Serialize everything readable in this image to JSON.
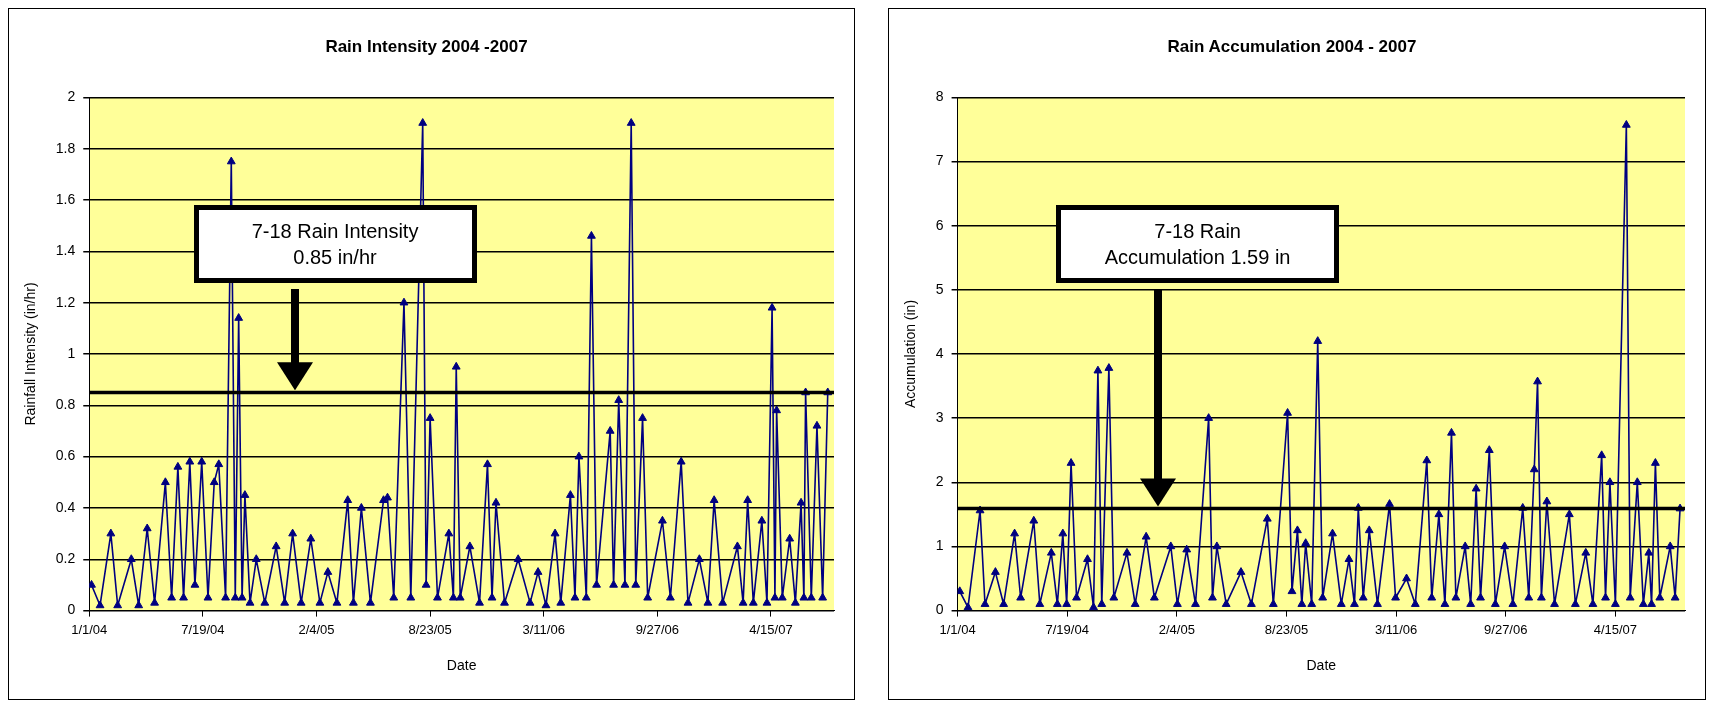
{
  "chart_data": [
    {
      "type": "line",
      "title": "Rain Intensity 2004 -2007",
      "xlabel": "Date",
      "ylabel": "Rainfall Intensity (in/hr)",
      "marker": "triangle",
      "grid": "y",
      "xlim": [
        "2004-01-01",
        "2007-08-04"
      ],
      "ylim": [
        0,
        2
      ],
      "xticks": [
        {
          "value": "2004-01-01",
          "label": "1/1/04"
        },
        {
          "value": "2004-07-19",
          "label": "7/19/04"
        },
        {
          "value": "2005-02-04",
          "label": "2/4/05"
        },
        {
          "value": "2005-08-23",
          "label": "8/23/05"
        },
        {
          "value": "2006-03-11",
          "label": "3/11/06"
        },
        {
          "value": "2006-09-27",
          "label": "9/27/06"
        },
        {
          "value": "2007-04-15",
          "label": "4/15/07"
        }
      ],
      "yticks": [
        0,
        0.2,
        0.4,
        0.6,
        0.8,
        1,
        1.2,
        1.4,
        1.6,
        1.8,
        2
      ],
      "ref_lines": [
        {
          "axis": "y",
          "value": 0.85,
          "label": "7-18 Rain Intensity 0.85 in/hr",
          "color": "#000000"
        }
      ],
      "series": [
        {
          "color": "#000080",
          "x": [
            "2004-01-05",
            "2004-01-20",
            "2004-02-08",
            "2004-02-20",
            "2004-03-15",
            "2004-03-28",
            "2004-04-12",
            "2004-04-25",
            "2004-05-14",
            "2004-05-25",
            "2004-06-05",
            "2004-06-15",
            "2004-06-26",
            "2004-07-05",
            "2004-07-17",
            "2004-07-28",
            "2004-08-08",
            "2004-08-16",
            "2004-08-28",
            "2004-09-07",
            "2004-09-14",
            "2004-09-20",
            "2004-09-26",
            "2004-10-01",
            "2004-10-10",
            "2004-10-21",
            "2004-11-05",
            "2004-11-25",
            "2004-12-10",
            "2004-12-24",
            "2005-01-08",
            "2005-01-25",
            "2005-02-10",
            "2005-02-24",
            "2005-03-12",
            "2005-03-31",
            "2005-04-10",
            "2005-04-24",
            "2005-05-10",
            "2005-06-02",
            "2005-06-09",
            "2005-06-20",
            "2005-07-08",
            "2005-07-20",
            "2005-08-10",
            "2005-08-16",
            "2005-08-23",
            "2005-09-05",
            "2005-09-25",
            "2005-10-03",
            "2005-10-08",
            "2005-10-15",
            "2005-11-01",
            "2005-11-18",
            "2005-12-02",
            "2005-12-10",
            "2005-12-17",
            "2006-01-01",
            "2006-01-25",
            "2006-02-15",
            "2006-03-01",
            "2006-03-15",
            "2006-03-31",
            "2006-04-10",
            "2006-04-27",
            "2006-05-05",
            "2006-05-12",
            "2006-05-25",
            "2006-06-03",
            "2006-06-12",
            "2006-07-06",
            "2006-07-12",
            "2006-07-21",
            "2006-08-01",
            "2006-08-12",
            "2006-08-20",
            "2006-09-01",
            "2006-09-10",
            "2006-10-06",
            "2006-10-20",
            "2006-11-08",
            "2006-11-20",
            "2006-12-10",
            "2006-12-25",
            "2007-01-05",
            "2007-01-20",
            "2007-02-15",
            "2007-02-25",
            "2007-03-05",
            "2007-03-15",
            "2007-03-30",
            "2007-04-08",
            "2007-04-17",
            "2007-04-22",
            "2007-04-25",
            "2007-05-05",
            "2007-05-18",
            "2007-05-28",
            "2007-06-07",
            "2007-06-12",
            "2007-06-15",
            "2007-06-25",
            "2007-07-05",
            "2007-07-15",
            "2007-07-24"
          ],
          "values": [
            0.1,
            0.02,
            0.3,
            0.02,
            0.2,
            0.02,
            0.32,
            0.03,
            0.5,
            0.05,
            0.56,
            0.05,
            0.58,
            0.1,
            0.58,
            0.05,
            0.5,
            0.57,
            0.05,
            1.75,
            0.05,
            1.14,
            0.05,
            0.45,
            0.03,
            0.2,
            0.03,
            0.25,
            0.03,
            0.3,
            0.03,
            0.28,
            0.03,
            0.15,
            0.03,
            0.43,
            0.03,
            0.4,
            0.03,
            0.43,
            0.44,
            0.05,
            1.2,
            0.05,
            1.9,
            0.1,
            0.75,
            0.05,
            0.3,
            0.05,
            0.95,
            0.05,
            0.25,
            0.03,
            0.57,
            0.05,
            0.42,
            0.03,
            0.2,
            0.03,
            0.15,
            0.02,
            0.3,
            0.03,
            0.45,
            0.05,
            0.6,
            0.05,
            1.46,
            0.1,
            0.7,
            0.1,
            0.82,
            0.1,
            1.9,
            0.1,
            0.75,
            0.05,
            0.35,
            0.05,
            0.58,
            0.03,
            0.2,
            0.03,
            0.43,
            0.03,
            0.25,
            0.03,
            0.43,
            0.03,
            0.35,
            0.03,
            1.18,
            0.05,
            0.78,
            0.05,
            0.28,
            0.03,
            0.42,
            0.05,
            0.85,
            0.05,
            0.72,
            0.05,
            0.85
          ]
        }
      ]
    },
    {
      "type": "line",
      "title": "Rain Accumulation 2004 - 2007",
      "xlabel": "Date",
      "ylabel": "Accumulation (in)",
      "marker": "triangle",
      "grid": "y",
      "xlim": [
        "2004-01-01",
        "2007-08-20"
      ],
      "ylim": [
        0,
        8
      ],
      "xticks": [
        {
          "value": "2004-01-01",
          "label": "1/1/04"
        },
        {
          "value": "2004-07-19",
          "label": "7/19/04"
        },
        {
          "value": "2005-02-04",
          "label": "2/4/05"
        },
        {
          "value": "2005-08-23",
          "label": "8/23/05"
        },
        {
          "value": "2006-03-11",
          "label": "3/11/06"
        },
        {
          "value": "2006-09-27",
          "label": "9/27/06"
        },
        {
          "value": "2007-04-15",
          "label": "4/15/07"
        }
      ],
      "yticks": [
        0,
        1,
        2,
        3,
        4,
        5,
        6,
        7,
        8
      ],
      "ref_lines": [
        {
          "axis": "y",
          "value": 1.59,
          "label": "7-18 Rain Accumulation 1.59 in",
          "color": "#000000"
        }
      ],
      "series": [
        {
          "color": "#000080",
          "x": [
            "2004-01-05",
            "2004-01-20",
            "2004-02-11",
            "2004-02-20",
            "2004-03-10",
            "2004-03-25",
            "2004-04-14",
            "2004-04-25",
            "2004-05-19",
            "2004-05-30",
            "2004-06-20",
            "2004-07-01",
            "2004-07-11",
            "2004-07-18",
            "2004-07-26",
            "2004-08-05",
            "2004-08-25",
            "2004-09-05",
            "2004-09-13",
            "2004-09-20",
            "2004-10-03",
            "2004-10-12",
            "2004-11-05",
            "2004-11-20",
            "2004-12-10",
            "2004-12-25",
            "2005-01-24",
            "2005-02-05",
            "2005-02-22",
            "2005-03-10",
            "2005-04-03",
            "2005-04-10",
            "2005-04-18",
            "2005-05-05",
            "2005-06-01",
            "2005-06-20",
            "2005-07-19",
            "2005-07-30",
            "2005-08-25",
            "2005-09-02",
            "2005-09-12",
            "2005-09-20",
            "2005-09-27",
            "2005-10-08",
            "2005-10-19",
            "2005-10-28",
            "2005-11-15",
            "2005-12-01",
            "2005-12-15",
            "2005-12-25",
            "2006-01-01",
            "2006-01-10",
            "2006-01-21",
            "2006-02-05",
            "2006-02-27",
            "2006-03-10",
            "2006-03-30",
            "2006-04-15",
            "2006-05-06",
            "2006-05-15",
            "2006-05-28",
            "2006-06-08",
            "2006-06-20",
            "2006-06-28",
            "2006-07-15",
            "2006-07-25",
            "2006-08-04",
            "2006-08-12",
            "2006-08-28",
            "2006-09-08",
            "2006-09-25",
            "2006-10-10",
            "2006-10-28",
            "2006-11-08",
            "2006-11-18",
            "2006-11-24",
            "2006-12-01",
            "2006-12-11",
            "2006-12-25",
            "2007-01-21",
            "2007-02-01",
            "2007-02-20",
            "2007-03-05",
            "2007-03-21",
            "2007-03-28",
            "2007-04-05",
            "2007-04-15",
            "2007-05-05",
            "2007-05-12",
            "2007-05-25",
            "2007-06-05",
            "2007-06-15",
            "2007-06-20",
            "2007-06-27",
            "2007-07-05",
            "2007-07-24",
            "2007-08-02",
            "2007-08-11"
          ],
          "values": [
            0.3,
            0.05,
            1.56,
            0.1,
            0.6,
            0.1,
            1.2,
            0.2,
            1.4,
            0.1,
            0.9,
            0.1,
            1.2,
            0.1,
            2.3,
            0.2,
            0.8,
            0.05,
            3.74,
            0.1,
            3.78,
            0.2,
            0.9,
            0.1,
            1.15,
            0.2,
            1,
            0.1,
            0.95,
            0.1,
            3,
            0.2,
            1,
            0.1,
            0.6,
            0.1,
            1.43,
            0.1,
            3.08,
            0.3,
            1.25,
            0.1,
            1.05,
            0.1,
            4.2,
            0.2,
            1.2,
            0.1,
            0.8,
            0.1,
            1.6,
            0.2,
            1.25,
            0.1,
            1.66,
            0.2,
            0.5,
            0.1,
            2.34,
            0.2,
            1.5,
            0.1,
            2.77,
            0.2,
            1,
            0.1,
            1.9,
            0.2,
            2.5,
            0.1,
            1,
            0.1,
            1.6,
            0.2,
            2.2,
            3.57,
            0.2,
            1.7,
            0.1,
            1.5,
            0.1,
            0.9,
            0.1,
            2.42,
            0.2,
            2,
            0.1,
            7.57,
            0.2,
            2,
            0.1,
            0.9,
            0.1,
            2.3,
            0.2,
            1,
            0.2,
            1.59
          ]
        }
      ]
    }
  ]
}
